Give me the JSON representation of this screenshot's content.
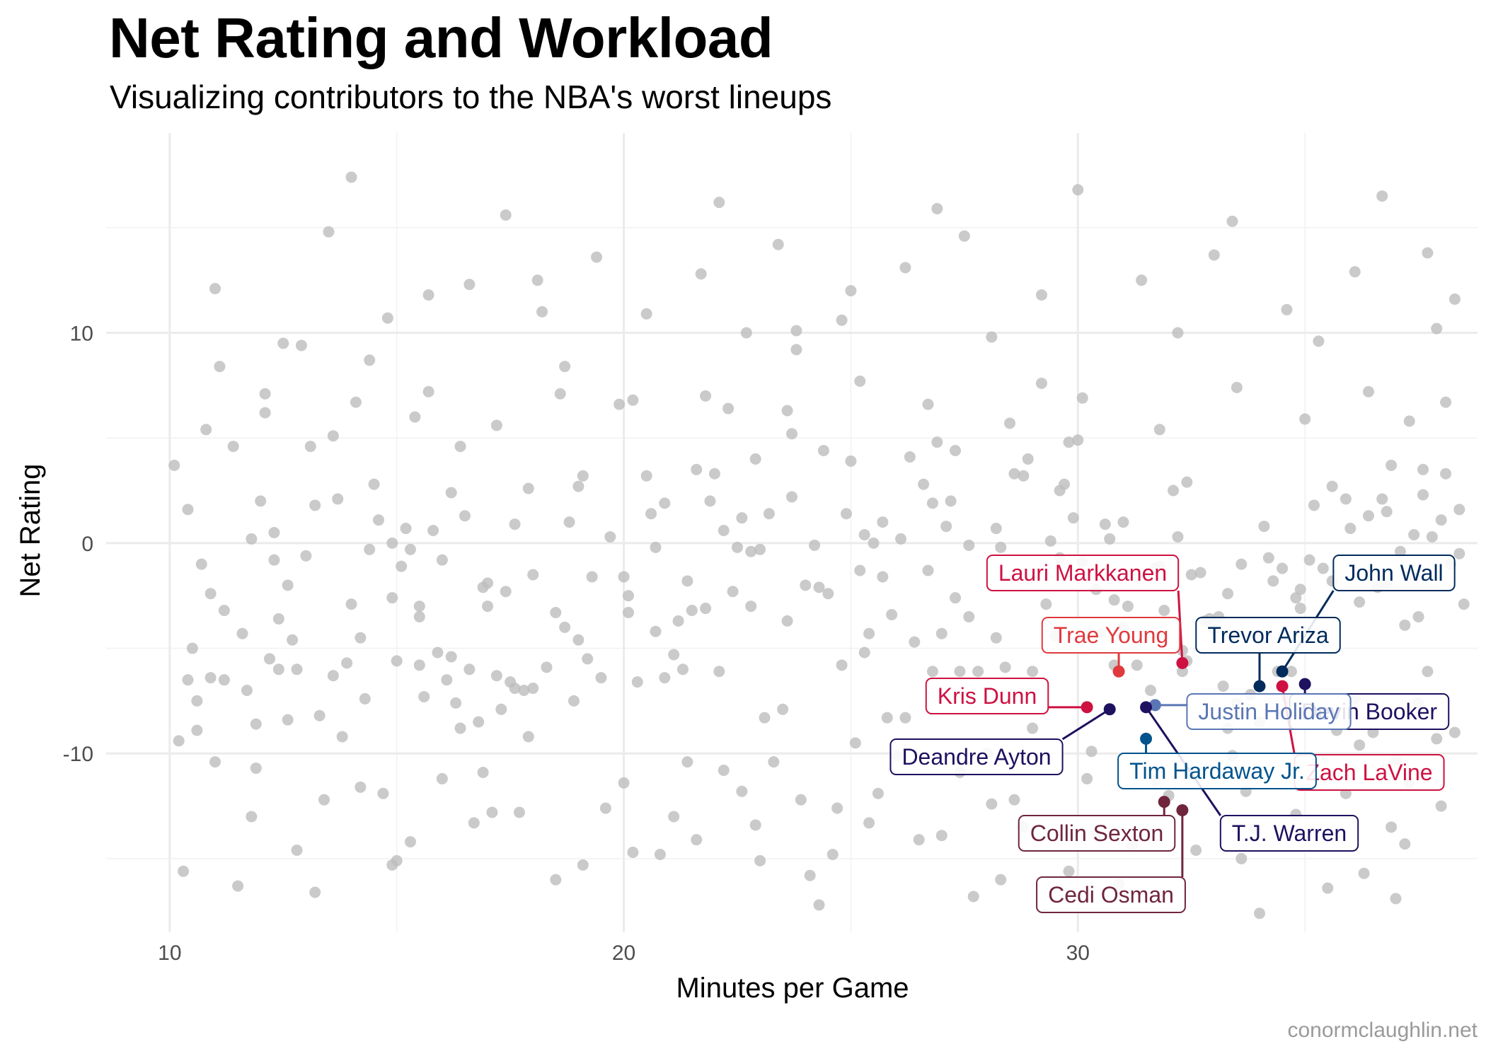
{
  "watermark": "conormclaughlin.net",
  "chart_data": {
    "type": "scatter",
    "title": "Net Rating and Workload",
    "subtitle": "Visualizing contributors to the NBA's worst lineups",
    "xlabel": "Minutes per Game",
    "ylabel": "Net Rating",
    "xlim": [
      8.6,
      38.8
    ],
    "ylim": [
      -18.5,
      19.5
    ],
    "x_ticks": [
      10,
      20,
      30
    ],
    "y_ticks": [
      -10,
      0,
      10
    ],
    "grid": true,
    "background_color": "#bdbdbd",
    "background_points": [
      [
        10.1,
        3.7
      ],
      [
        10.2,
        -9.4
      ],
      [
        10.4,
        -6.5
      ],
      [
        10.5,
        -5.0
      ],
      [
        10.6,
        -8.9
      ],
      [
        10.7,
        -1.0
      ],
      [
        10.8,
        5.4
      ],
      [
        10.9,
        -6.4
      ],
      [
        11.0,
        -10.4
      ],
      [
        11.1,
        8.4
      ],
      [
        11.2,
        -6.5
      ],
      [
        11.6,
        -4.3
      ],
      [
        11.7,
        -7.0
      ],
      [
        11.8,
        -13.0
      ],
      [
        11.9,
        -8.6
      ],
      [
        12.0,
        2.0
      ],
      [
        12.1,
        7.1
      ],
      [
        12.2,
        -5.5
      ],
      [
        12.3,
        0.5
      ],
      [
        12.3,
        -0.8
      ],
      [
        12.4,
        -6.0
      ],
      [
        12.5,
        9.5
      ],
      [
        12.6,
        -2.0
      ],
      [
        12.7,
        -4.6
      ],
      [
        12.8,
        -6.0
      ],
      [
        13.1,
        4.6
      ],
      [
        13.2,
        1.8
      ],
      [
        13.3,
        -8.2
      ],
      [
        13.6,
        -6.3
      ],
      [
        13.7,
        2.1
      ],
      [
        13.9,
        -5.7
      ],
      [
        14.0,
        17.4
      ],
      [
        14.1,
        6.7
      ],
      [
        14.2,
        -4.5
      ],
      [
        14.2,
        -11.6
      ],
      [
        14.3,
        -7.4
      ],
      [
        14.4,
        -0.3
      ],
      [
        14.4,
        8.7
      ],
      [
        14.5,
        2.8
      ],
      [
        14.9,
        0.0
      ],
      [
        14.9,
        -2.6
      ],
      [
        15.0,
        -5.6
      ],
      [
        15.1,
        -1.1
      ],
      [
        15.2,
        0.7
      ],
      [
        15.3,
        -0.3
      ],
      [
        15.5,
        -3.5
      ],
      [
        15.5,
        -5.8
      ],
      [
        15.6,
        -7.3
      ],
      [
        15.7,
        7.2
      ],
      [
        15.8,
        0.6
      ],
      [
        15.9,
        -5.2
      ],
      [
        16.0,
        -0.8
      ],
      [
        16.1,
        -6.5
      ],
      [
        16.2,
        -5.4
      ],
      [
        16.3,
        -7.6
      ],
      [
        16.4,
        4.6
      ],
      [
        16.5,
        1.3
      ],
      [
        16.6,
        -6.0
      ],
      [
        16.8,
        -8.5
      ],
      [
        16.9,
        -2.1
      ],
      [
        16.9,
        -10.9
      ],
      [
        17.0,
        -3.0
      ],
      [
        17.2,
        -6.3
      ],
      [
        17.3,
        -7.9
      ],
      [
        17.4,
        -2.3
      ],
      [
        17.5,
        -6.6
      ],
      [
        17.6,
        -6.9
      ],
      [
        17.7,
        -12.8
      ],
      [
        17.8,
        -7.0
      ],
      [
        17.9,
        2.6
      ],
      [
        18.0,
        -6.9
      ],
      [
        18.1,
        12.5
      ],
      [
        18.3,
        -5.9
      ],
      [
        18.6,
        7.1
      ],
      [
        18.7,
        -4.0
      ],
      [
        18.8,
        1.0
      ],
      [
        18.9,
        -7.5
      ],
      [
        19.0,
        -4.6
      ],
      [
        19.1,
        3.2
      ],
      [
        19.2,
        -5.5
      ],
      [
        19.3,
        -1.6
      ],
      [
        19.5,
        -6.4
      ],
      [
        19.7,
        0.3
      ],
      [
        19.9,
        6.6
      ],
      [
        20.0,
        -1.6
      ],
      [
        20.1,
        -3.3
      ],
      [
        20.2,
        -14.7
      ],
      [
        20.3,
        -6.6
      ],
      [
        20.5,
        3.2
      ],
      [
        20.6,
        1.4
      ],
      [
        20.7,
        -4.2
      ],
      [
        20.9,
        1.9
      ],
      [
        20.9,
        -6.4
      ],
      [
        21.1,
        -5.3
      ],
      [
        21.2,
        -3.7
      ],
      [
        21.3,
        -6.0
      ],
      [
        21.4,
        -10.4
      ],
      [
        21.5,
        -3.2
      ],
      [
        21.6,
        3.5
      ],
      [
        21.8,
        -3.1
      ],
      [
        21.9,
        2.0
      ],
      [
        22.0,
        3.3
      ],
      [
        22.1,
        -6.1
      ],
      [
        22.2,
        -10.8
      ],
      [
        22.3,
        6.4
      ],
      [
        22.4,
        -2.3
      ],
      [
        22.5,
        -0.2
      ],
      [
        22.6,
        1.2
      ],
      [
        22.7,
        10.0
      ],
      [
        22.8,
        -0.4
      ],
      [
        22.9,
        4.0
      ],
      [
        23.0,
        -0.3
      ],
      [
        23.1,
        -8.3
      ],
      [
        23.2,
        1.4
      ],
      [
        23.3,
        -10.4
      ],
      [
        23.5,
        -7.9
      ],
      [
        23.6,
        -3.7
      ],
      [
        23.7,
        5.2
      ],
      [
        23.8,
        10.1
      ],
      [
        23.8,
        9.2
      ],
      [
        24.0,
        -2.0
      ],
      [
        24.2,
        -0.1
      ],
      [
        24.4,
        4.4
      ],
      [
        24.5,
        -2.4
      ],
      [
        24.6,
        -14.8
      ],
      [
        24.7,
        -12.6
      ],
      [
        24.8,
        -5.8
      ],
      [
        24.9,
        1.4
      ],
      [
        25.0,
        3.9
      ],
      [
        25.1,
        -9.5
      ],
      [
        25.2,
        -1.3
      ],
      [
        25.3,
        -5.2
      ],
      [
        25.4,
        -4.3
      ],
      [
        25.5,
        0.0
      ],
      [
        25.6,
        -11.9
      ],
      [
        25.7,
        -1.6
      ],
      [
        25.7,
        1.0
      ],
      [
        26.0,
        -10.1
      ],
      [
        26.1,
        0.2
      ],
      [
        26.2,
        -8.3
      ],
      [
        26.3,
        4.1
      ],
      [
        26.4,
        -4.7
      ],
      [
        26.6,
        2.8
      ],
      [
        26.7,
        -1.3
      ],
      [
        26.8,
        -6.1
      ],
      [
        26.9,
        4.8
      ],
      [
        27.0,
        -4.3
      ],
      [
        27.1,
        0.8
      ],
      [
        27.2,
        2.0
      ],
      [
        27.3,
        4.4
      ],
      [
        27.4,
        -6.1
      ],
      [
        27.6,
        -0.1
      ],
      [
        27.6,
        -3.5
      ],
      [
        27.8,
        -6.1
      ],
      [
        28.0,
        -10.0
      ],
      [
        28.1,
        -12.4
      ],
      [
        28.2,
        -4.5
      ],
      [
        28.3,
        -0.2
      ],
      [
        28.4,
        -5.9
      ],
      [
        28.6,
        3.3
      ],
      [
        28.8,
        3.2
      ],
      [
        28.9,
        4.0
      ],
      [
        29.0,
        -6.1
      ],
      [
        29.0,
        -8.8
      ],
      [
        29.2,
        7.6
      ],
      [
        29.3,
        -2.9
      ],
      [
        29.4,
        0.1
      ],
      [
        29.5,
        -4.4
      ],
      [
        29.6,
        -0.7
      ],
      [
        29.7,
        2.8
      ],
      [
        29.8,
        4.8
      ],
      [
        29.9,
        1.2
      ],
      [
        30.0,
        4.9
      ],
      [
        30.1,
        -0.9
      ],
      [
        30.3,
        -9.9
      ],
      [
        30.5,
        -4.3
      ],
      [
        30.6,
        0.9
      ],
      [
        30.7,
        0.2
      ],
      [
        30.8,
        -2.7
      ],
      [
        30.8,
        -5.8
      ],
      [
        30.9,
        -4.2
      ],
      [
        31.0,
        -4.0
      ],
      [
        31.1,
        -3.0
      ],
      [
        31.3,
        -5.8
      ],
      [
        31.6,
        -7.0
      ],
      [
        31.7,
        -1.2
      ],
      [
        31.8,
        -1.1
      ],
      [
        32.1,
        2.5
      ],
      [
        32.2,
        0.3
      ],
      [
        32.3,
        -5.1
      ],
      [
        32.3,
        -6.1
      ],
      [
        32.4,
        -5.6
      ],
      [
        32.5,
        -1.5
      ],
      [
        32.7,
        -1.4
      ],
      [
        32.8,
        -3.7
      ],
      [
        32.9,
        -3.6
      ],
      [
        33.0,
        -4.1
      ],
      [
        33.1,
        -3.5
      ],
      [
        33.2,
        -6.8
      ],
      [
        33.3,
        -8.8
      ],
      [
        33.4,
        -10.1
      ],
      [
        33.5,
        -7.6
      ],
      [
        33.6,
        -1.0
      ],
      [
        33.7,
        -11.8
      ],
      [
        33.8,
        -7.2
      ],
      [
        33.9,
        -4.4
      ],
      [
        34.0,
        -8.5
      ],
      [
        34.2,
        -0.7
      ],
      [
        34.3,
        -1.8
      ],
      [
        34.4,
        -6.1
      ],
      [
        34.5,
        -1.2
      ],
      [
        34.6,
        -7.4
      ],
      [
        34.7,
        -6.1
      ],
      [
        34.8,
        -2.6
      ],
      [
        34.9,
        -2.2
      ],
      [
        35.0,
        -8.1
      ],
      [
        35.1,
        -0.8
      ],
      [
        35.2,
        1.8
      ],
      [
        35.4,
        -1.2
      ],
      [
        35.5,
        -7.7
      ],
      [
        35.6,
        -1.8
      ],
      [
        35.7,
        -8.9
      ],
      [
        35.9,
        2.1
      ],
      [
        36.0,
        0.7
      ],
      [
        36.1,
        -7.4
      ],
      [
        36.2,
        -9.6
      ],
      [
        36.4,
        1.3
      ],
      [
        36.5,
        -9.0
      ],
      [
        36.6,
        -2.1
      ],
      [
        36.7,
        2.1
      ],
      [
        36.8,
        -1.9
      ],
      [
        36.9,
        3.7
      ],
      [
        37.0,
        -10.3
      ],
      [
        37.1,
        -0.4
      ],
      [
        37.2,
        -3.9
      ],
      [
        37.3,
        -11.4
      ],
      [
        37.4,
        0.4
      ],
      [
        37.5,
        -3.5
      ],
      [
        37.5,
        -7.6
      ],
      [
        37.6,
        3.5
      ],
      [
        37.7,
        -6.1
      ],
      [
        37.8,
        0.3
      ],
      [
        37.9,
        -9.3
      ],
      [
        38.0,
        1.1
      ],
      [
        38.1,
        3.3
      ],
      [
        38.2,
        -1.0
      ],
      [
        38.3,
        -9.0
      ],
      [
        38.4,
        1.6
      ],
      [
        38.4,
        -0.5
      ],
      [
        10.6,
        -7.5
      ],
      [
        11.9,
        -10.7
      ],
      [
        13.8,
        -9.2
      ],
      [
        15.3,
        -14.2
      ],
      [
        16.4,
        -8.8
      ],
      [
        17.1,
        -12.8
      ],
      [
        18.0,
        -1.5
      ],
      [
        19.6,
        -12.6
      ],
      [
        21.6,
        -14.1
      ],
      [
        23.0,
        -15.1
      ],
      [
        25.8,
        -8.3
      ],
      [
        27.4,
        -10.9
      ],
      [
        28.6,
        -12.2
      ],
      [
        29.8,
        -15.6
      ],
      [
        31.2,
        -14.4
      ],
      [
        32.0,
        -12.0
      ],
      [
        33.6,
        -15.0
      ],
      [
        35.5,
        -16.4
      ],
      [
        36.9,
        -13.5
      ],
      [
        10.3,
        -15.6
      ],
      [
        11.5,
        -16.3
      ],
      [
        13.4,
        -12.2
      ],
      [
        12.8,
        -14.6
      ],
      [
        15.0,
        -15.1
      ],
      [
        16.7,
        -13.3
      ],
      [
        19.1,
        -15.3
      ],
      [
        20.8,
        -14.8
      ],
      [
        22.9,
        -13.4
      ],
      [
        24.1,
        -15.8
      ],
      [
        26.5,
        -14.1
      ],
      [
        28.3,
        -16.0
      ],
      [
        30.4,
        -13.8
      ],
      [
        32.6,
        -14.6
      ],
      [
        34.8,
        -12.9
      ],
      [
        36.3,
        -15.7
      ],
      [
        11.2,
        -3.2
      ],
      [
        12.6,
        -8.4
      ],
      [
        14.7,
        -11.9
      ],
      [
        16.0,
        -11.2
      ],
      [
        17.9,
        -9.2
      ],
      [
        20.0,
        -11.4
      ],
      [
        21.1,
        -13.0
      ],
      [
        22.6,
        -11.8
      ],
      [
        23.9,
        -12.2
      ],
      [
        25.4,
        -13.3
      ],
      [
        27.0,
        -13.9
      ],
      [
        28.8,
        -13.5
      ],
      [
        30.2,
        -11.2
      ],
      [
        31.7,
        -11.3
      ],
      [
        33.9,
        -13.6
      ],
      [
        35.9,
        -11.9
      ],
      [
        37.2,
        -14.3
      ],
      [
        38.0,
        -12.5
      ],
      [
        14.9,
        -15.3
      ],
      [
        13.2,
        -16.6
      ],
      [
        18.5,
        -16.0
      ],
      [
        24.3,
        -17.2
      ],
      [
        27.7,
        -16.8
      ],
      [
        30.9,
        -16.2
      ],
      [
        34.0,
        -17.6
      ],
      [
        37.0,
        -16.9
      ],
      [
        11.4,
        4.6
      ],
      [
        12.9,
        9.4
      ],
      [
        14.8,
        10.7
      ],
      [
        16.6,
        12.3
      ],
      [
        18.2,
        11.0
      ],
      [
        19.4,
        13.6
      ],
      [
        21.7,
        12.8
      ],
      [
        23.4,
        14.2
      ],
      [
        25.0,
        12.0
      ],
      [
        26.2,
        13.1
      ],
      [
        27.5,
        14.6
      ],
      [
        29.2,
        11.8
      ],
      [
        31.4,
        12.5
      ],
      [
        33.0,
        13.7
      ],
      [
        34.6,
        11.1
      ],
      [
        36.1,
        12.9
      ],
      [
        37.7,
        13.8
      ],
      [
        38.3,
        11.6
      ],
      [
        13.5,
        14.8
      ],
      [
        17.4,
        15.6
      ],
      [
        22.1,
        16.2
      ],
      [
        26.9,
        15.9
      ],
      [
        30.0,
        16.8
      ],
      [
        33.4,
        15.3
      ],
      [
        36.7,
        16.5
      ],
      [
        11.0,
        12.1
      ],
      [
        15.7,
        11.8
      ],
      [
        20.5,
        10.9
      ],
      [
        24.8,
        10.6
      ],
      [
        28.1,
        9.8
      ],
      [
        32.2,
        10.0
      ],
      [
        35.3,
        9.6
      ],
      [
        37.9,
        10.2
      ],
      [
        12.1,
        6.2
      ],
      [
        13.6,
        5.1
      ],
      [
        15.4,
        6.0
      ],
      [
        17.2,
        5.6
      ],
      [
        18.7,
        8.4
      ],
      [
        20.2,
        6.8
      ],
      [
        21.8,
        7.0
      ],
      [
        23.6,
        6.3
      ],
      [
        25.2,
        7.7
      ],
      [
        26.7,
        6.6
      ],
      [
        28.5,
        5.7
      ],
      [
        30.1,
        6.9
      ],
      [
        31.8,
        5.4
      ],
      [
        33.5,
        7.4
      ],
      [
        35.0,
        5.9
      ],
      [
        36.4,
        7.2
      ],
      [
        37.3,
        5.8
      ],
      [
        38.1,
        6.7
      ],
      [
        10.4,
        1.6
      ],
      [
        11.8,
        0.2
      ],
      [
        13.0,
        -0.6
      ],
      [
        14.6,
        1.1
      ],
      [
        16.2,
        2.4
      ],
      [
        17.6,
        0.9
      ],
      [
        19.0,
        2.7
      ],
      [
        20.7,
        -0.2
      ],
      [
        22.2,
        0.6
      ],
      [
        23.7,
        2.2
      ],
      [
        25.3,
        0.4
      ],
      [
        26.8,
        1.9
      ],
      [
        28.2,
        0.7
      ],
      [
        29.6,
        2.5
      ],
      [
        31.0,
        1.0
      ],
      [
        32.4,
        2.9
      ],
      [
        34.1,
        0.8
      ],
      [
        35.6,
        2.7
      ],
      [
        36.8,
        1.5
      ],
      [
        37.6,
        2.3
      ],
      [
        10.9,
        -2.4
      ],
      [
        12.4,
        -3.6
      ],
      [
        14.0,
        -2.9
      ],
      [
        15.5,
        -3.0
      ],
      [
        17.0,
        -1.9
      ],
      [
        18.5,
        -3.3
      ],
      [
        20.1,
        -2.5
      ],
      [
        21.4,
        -1.8
      ],
      [
        22.8,
        -3.0
      ],
      [
        24.3,
        -2.1
      ],
      [
        25.9,
        -3.4
      ],
      [
        27.3,
        -2.6
      ],
      [
        28.9,
        -1.7
      ],
      [
        30.4,
        -2.2
      ],
      [
        31.9,
        -3.2
      ],
      [
        33.3,
        -2.4
      ],
      [
        34.9,
        -3.1
      ],
      [
        36.2,
        -2.8
      ],
      [
        37.4,
        -1.6
      ],
      [
        38.5,
        -2.9
      ]
    ],
    "series": [
      {
        "name": "Lauri Markkanen",
        "x": 32.3,
        "y": -5.7,
        "color": "#ce1141"
      },
      {
        "name": "Trae Young",
        "x": 30.9,
        "y": -6.1,
        "color": "#e03a3e"
      },
      {
        "name": "Kris Dunn",
        "x": 30.2,
        "y": -7.8,
        "color": "#ce1141"
      },
      {
        "name": "Deandre Ayton",
        "x": 30.7,
        "y": -7.9,
        "color": "#1d1160"
      },
      {
        "name": "John Wall",
        "x": 34.5,
        "y": -6.1,
        "color": "#002b5c"
      },
      {
        "name": "Trevor Ariza",
        "x": 34.0,
        "y": -6.8,
        "color": "#002b5c"
      },
      {
        "name": "Devin Booker",
        "x": 35.0,
        "y": -6.7,
        "color": "#1d1160"
      },
      {
        "name": "Zach LaVine",
        "x": 34.5,
        "y": -6.8,
        "color": "#ce1141"
      },
      {
        "name": "Justin Holiday",
        "x": 31.7,
        "y": -7.7,
        "color": "#5a76b4"
      },
      {
        "name": "T.J. Warren",
        "x": 31.5,
        "y": -7.8,
        "color": "#1d1160"
      },
      {
        "name": "Tim Hardaway Jr.",
        "x": 31.5,
        "y": -9.3,
        "color": "#00538c"
      },
      {
        "name": "Collin Sexton",
        "x": 31.9,
        "y": -12.3,
        "color": "#6f263d"
      },
      {
        "name": "Cedi Osman",
        "x": 32.3,
        "y": -12.7,
        "color": "#6f263d"
      }
    ]
  }
}
